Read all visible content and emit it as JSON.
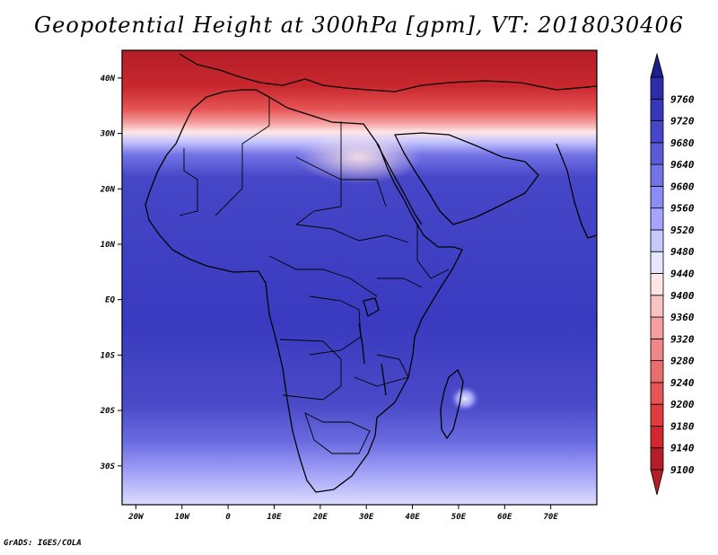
{
  "title": "Geopotential Height at 300hPa [gpm], VT: 2018030406",
  "credit": "GrADS: IGES/COLA",
  "map": {
    "lon_range": [
      -23,
      80
    ],
    "lat_range": [
      -37,
      45
    ],
    "x_ticks": [
      {
        "value": -20,
        "label": "20W"
      },
      {
        "value": -10,
        "label": "10W"
      },
      {
        "value": 0,
        "label": "0"
      },
      {
        "value": 10,
        "label": "10E"
      },
      {
        "value": 20,
        "label": "20E"
      },
      {
        "value": 30,
        "label": "30E"
      },
      {
        "value": 40,
        "label": "40E"
      },
      {
        "value": 50,
        "label": "50E"
      },
      {
        "value": 60,
        "label": "60E"
      },
      {
        "value": 70,
        "label": "70E"
      }
    ],
    "y_ticks": [
      {
        "value": 40,
        "label": "40N"
      },
      {
        "value": 30,
        "label": "30N"
      },
      {
        "value": 20,
        "label": "20N"
      },
      {
        "value": 10,
        "label": "10N"
      },
      {
        "value": 0,
        "label": "EQ"
      },
      {
        "value": -10,
        "label": "10S"
      },
      {
        "value": -20,
        "label": "20S"
      },
      {
        "value": -30,
        "label": "30S"
      }
    ]
  },
  "colorbar": {
    "levels": [
      {
        "label": "9100",
        "color": "#b41e28"
      },
      {
        "label": "9140",
        "color": "#d2282d"
      },
      {
        "label": "9180",
        "color": "#e13c3c"
      },
      {
        "label": "9200",
        "color": "#e65555"
      },
      {
        "label": "9240",
        "color": "#eb6e6e"
      },
      {
        "label": "9280",
        "color": "#f08787"
      },
      {
        "label": "9320",
        "color": "#f5a0a0"
      },
      {
        "label": "9360",
        "color": "#fac3c3"
      },
      {
        "label": "9400",
        "color": "#ffe6e6"
      },
      {
        "label": "9440",
        "color": "#e6e6ff"
      },
      {
        "label": "9480",
        "color": "#c8c8ff"
      },
      {
        "label": "9520",
        "color": "#a5a5ff"
      },
      {
        "label": "9560",
        "color": "#8c8cf5"
      },
      {
        "label": "9600",
        "color": "#7373e6"
      },
      {
        "label": "9640",
        "color": "#5a5ad7"
      },
      {
        "label": "9680",
        "color": "#4646c8"
      },
      {
        "label": "9720",
        "color": "#3737b9"
      },
      {
        "label": "9760",
        "color": "#2d2daa"
      }
    ],
    "top_color": "#1e1e8c"
  },
  "colors": {
    "belt_blue": "#3a3ac0",
    "south_light": "#c8c8ff",
    "north_red": "#c8282d"
  }
}
